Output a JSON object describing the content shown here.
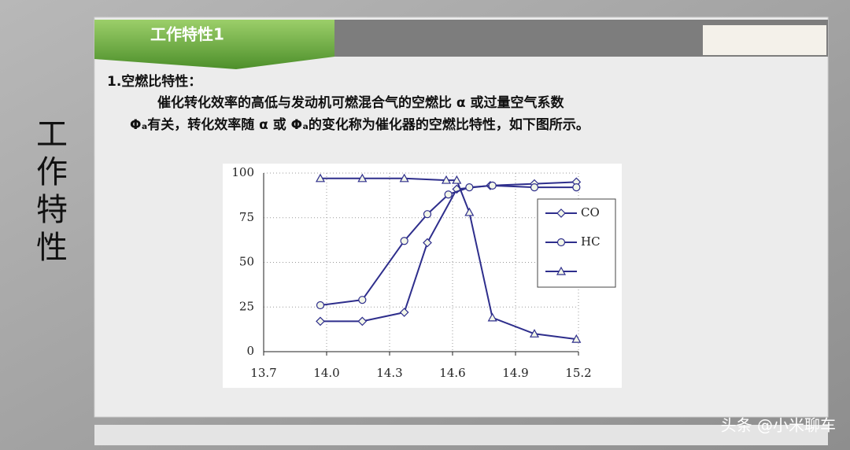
{
  "slide": {
    "side_title": "工作特性",
    "tab_title": "工作特性1",
    "heading": "1.空燃比特性：",
    "paragraph": [
      "催化转化效率的高低与发动机可燃混合气的空燃比 α 或过量空气系数",
      "Φₐ有关，转化效率随 α 或 Φₐ的变化称为催化器的空燃比特性，如下图所示。"
    ]
  },
  "watermark": "头条 @小米聊车",
  "chart_data": {
    "type": "line",
    "xlim": [
      13.7,
      15.2
    ],
    "xticks": [
      13.7,
      {
        "value": 14,
        "label": "14.0"
      },
      14.3,
      14.6,
      14.9,
      15.2
    ],
    "ylim": [
      0,
      100
    ],
    "yticks": [
      0,
      25,
      50,
      75,
      100
    ],
    "grid": true,
    "legend": "right",
    "series": [
      {
        "name": "CO",
        "color": "#2e2e8c",
        "marker": "diamond",
        "x": [
          13.97,
          14.17,
          14.37,
          14.48,
          14.62,
          14.78,
          14.99,
          15.19
        ],
        "values": [
          17,
          17,
          22,
          61,
          91,
          93,
          94,
          95
        ]
      },
      {
        "name": "HC",
        "color": "#2e2e8c",
        "marker": "circle",
        "x": [
          13.97,
          14.17,
          14.37,
          14.48,
          14.58,
          14.68,
          14.79,
          14.99,
          15.19
        ],
        "values": [
          26,
          29,
          62,
          77,
          88,
          92,
          93,
          92,
          92
        ]
      },
      {
        "color": "#2e2e8c",
        "marker": "triangle",
        "x": [
          13.97,
          14.17,
          14.37,
          14.57,
          14.62,
          14.68,
          14.79,
          14.99,
          15.19
        ],
        "values": [
          97,
          97,
          97,
          96,
          96,
          78,
          19,
          10,
          7
        ]
      }
    ]
  }
}
